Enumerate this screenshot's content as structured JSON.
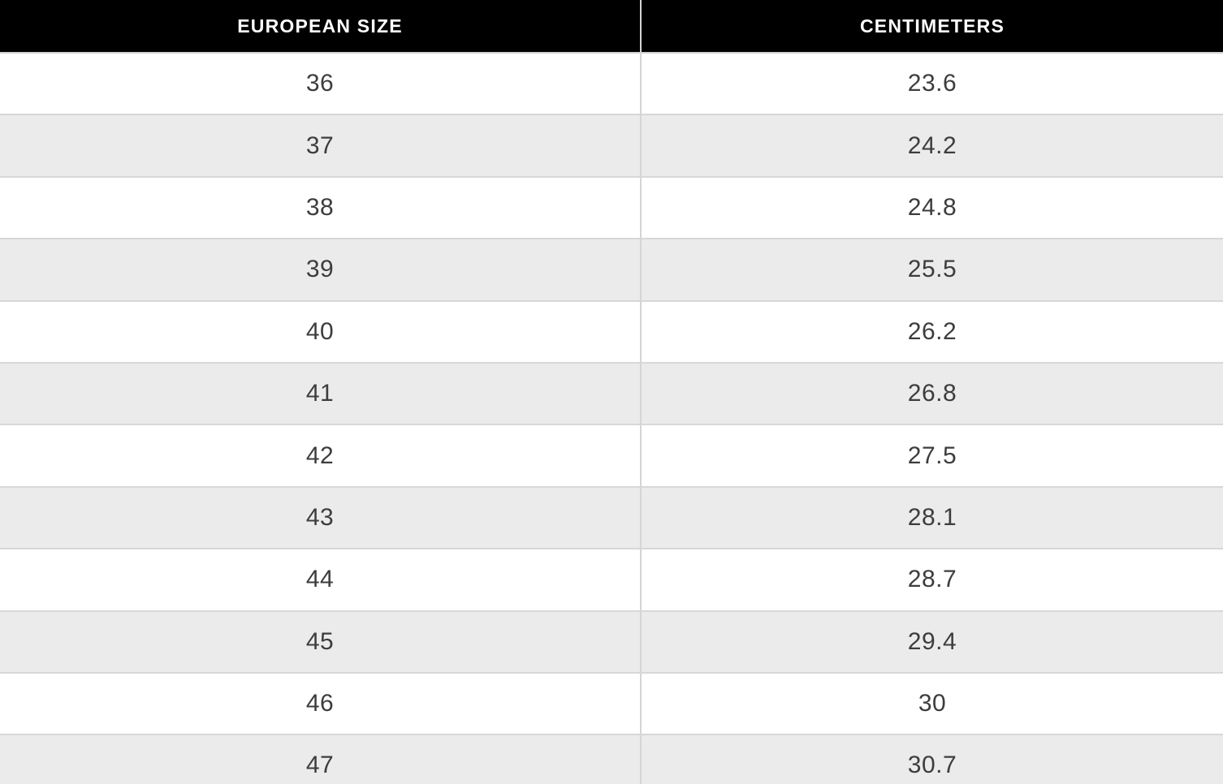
{
  "table": {
    "columns": [
      {
        "label": "EUROPEAN SIZE"
      },
      {
        "label": "CENTIMETERS"
      }
    ],
    "rows": [
      {
        "eu": "36",
        "cm": "23.6"
      },
      {
        "eu": "37",
        "cm": "24.2"
      },
      {
        "eu": "38",
        "cm": "24.8"
      },
      {
        "eu": "39",
        "cm": "25.5"
      },
      {
        "eu": "40",
        "cm": "26.2"
      },
      {
        "eu": "41",
        "cm": "26.8"
      },
      {
        "eu": "42",
        "cm": "27.5"
      },
      {
        "eu": "43",
        "cm": "28.1"
      },
      {
        "eu": "44",
        "cm": "28.7"
      },
      {
        "eu": "45",
        "cm": "29.4"
      },
      {
        "eu": "46",
        "cm": "30"
      },
      {
        "eu": "47",
        "cm": "30.7"
      }
    ]
  },
  "colors": {
    "header_bg": "#000000",
    "header_text": "#ffffff",
    "row_bg": "#ffffff",
    "row_alt_bg": "#ebebeb",
    "border": "#d5d5d5",
    "cell_text": "#3d3c3e"
  },
  "chart_data": {
    "type": "table",
    "title": "European shoe size to centimeters conversion",
    "columns": [
      "EUROPEAN SIZE",
      "CENTIMETERS"
    ],
    "categories": [
      "36",
      "37",
      "38",
      "39",
      "40",
      "41",
      "42",
      "43",
      "44",
      "45",
      "46",
      "47"
    ],
    "values": [
      23.6,
      24.2,
      24.8,
      25.5,
      26.2,
      26.8,
      27.5,
      28.1,
      28.7,
      29.4,
      30,
      30.7
    ],
    "layout": {
      "header_style": "black background, white bold uppercase text",
      "row_striping": "white / light gray alternating",
      "grid": "light gray row and column dividers",
      "last_row_clipped": true
    }
  }
}
